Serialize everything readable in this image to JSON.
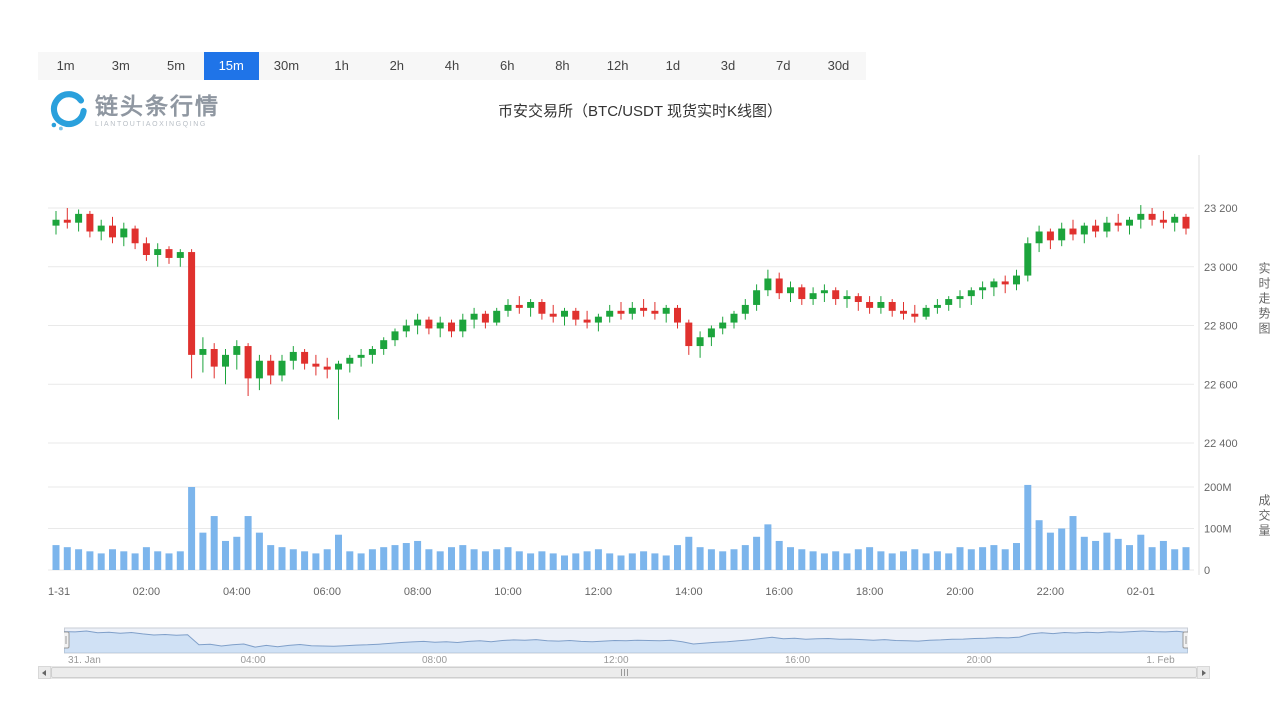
{
  "theme": {
    "accent": "#1f74e8"
  },
  "logo": {
    "name": "链头条行情",
    "subtitle": "LIANTOUTIAOXINGQING"
  },
  "intervals": {
    "options": [
      "1m",
      "3m",
      "5m",
      "15m",
      "30m",
      "1h",
      "2h",
      "4h",
      "6h",
      "8h",
      "12h",
      "1d",
      "3d",
      "7d",
      "30d"
    ],
    "selected": "15m"
  },
  "chart_data": {
    "type": "candlestick",
    "title": "币安交易所（BTC/USDT 现货实时K线图）",
    "symbol": "BTC/USDT",
    "interval": "15m",
    "start": "01-31 00:00",
    "interval_minutes": 15,
    "price_axis": {
      "title": "实时走势图",
      "labels": [
        "23 200",
        "23 000",
        "22 800",
        "22 600",
        "22 400"
      ],
      "values": [
        23200,
        23000,
        22800,
        22600,
        22400
      ]
    },
    "volume_axis": {
      "title": "成交量",
      "labels": [
        "200M",
        "100M",
        "0"
      ],
      "values": [
        200,
        100,
        0
      ],
      "unit": "M"
    },
    "x_axis": {
      "labels": [
        "01-31",
        "02:00",
        "04:00",
        "06:00",
        "08:00",
        "10:00",
        "12:00",
        "14:00",
        "16:00",
        "18:00",
        "20:00",
        "22:00",
        "02-01"
      ],
      "candles_per_label": 8
    },
    "colors": {
      "up": "#1ca43c",
      "down": "#e0312e",
      "volume": "#7cb5ec",
      "grid": "#e9e9e9",
      "axis_line": "#dddddd"
    },
    "candles_format": [
      "open",
      "high",
      "low",
      "close",
      "volume_millions"
    ],
    "candles": [
      [
        23140,
        23190,
        23110,
        23160,
        60
      ],
      [
        23160,
        23200,
        23130,
        23150,
        55
      ],
      [
        23150,
        23195,
        23120,
        23180,
        50
      ],
      [
        23180,
        23190,
        23100,
        23120,
        45
      ],
      [
        23120,
        23160,
        23090,
        23140,
        40
      ],
      [
        23140,
        23170,
        23080,
        23100,
        50
      ],
      [
        23100,
        23150,
        23070,
        23130,
        45
      ],
      [
        23130,
        23140,
        23060,
        23080,
        40
      ],
      [
        23080,
        23100,
        23020,
        23040,
        55
      ],
      [
        23040,
        23080,
        23000,
        23060,
        45
      ],
      [
        23060,
        23070,
        23010,
        23030,
        40
      ],
      [
        23030,
        23060,
        23000,
        23050,
        45
      ],
      [
        23050,
        23060,
        22620,
        22700,
        200
      ],
      [
        22700,
        22760,
        22640,
        22720,
        90
      ],
      [
        22720,
        22740,
        22620,
        22660,
        130
      ],
      [
        22660,
        22720,
        22600,
        22700,
        70
      ],
      [
        22700,
        22750,
        22650,
        22730,
        80
      ],
      [
        22730,
        22740,
        22560,
        22620,
        130
      ],
      [
        22620,
        22700,
        22580,
        22680,
        90
      ],
      [
        22680,
        22700,
        22600,
        22630,
        60
      ],
      [
        22630,
        22700,
        22610,
        22680,
        55
      ],
      [
        22680,
        22730,
        22650,
        22710,
        50
      ],
      [
        22710,
        22720,
        22650,
        22670,
        45
      ],
      [
        22670,
        22700,
        22630,
        22660,
        40
      ],
      [
        22660,
        22690,
        22620,
        22650,
        50
      ],
      [
        22650,
        22680,
        22480,
        22670,
        85
      ],
      [
        22670,
        22700,
        22640,
        22690,
        45
      ],
      [
        22690,
        22720,
        22660,
        22700,
        40
      ],
      [
        22700,
        22730,
        22670,
        22720,
        50
      ],
      [
        22720,
        22760,
        22700,
        22750,
        55
      ],
      [
        22750,
        22790,
        22730,
        22780,
        60
      ],
      [
        22780,
        22820,
        22760,
        22800,
        65
      ],
      [
        22800,
        22840,
        22770,
        22820,
        70
      ],
      [
        22820,
        22830,
        22770,
        22790,
        50
      ],
      [
        22790,
        22830,
        22760,
        22810,
        45
      ],
      [
        22810,
        22820,
        22760,
        22780,
        55
      ],
      [
        22780,
        22840,
        22760,
        22820,
        60
      ],
      [
        22820,
        22860,
        22790,
        22840,
        50
      ],
      [
        22840,
        22850,
        22790,
        22810,
        45
      ],
      [
        22810,
        22860,
        22800,
        22850,
        50
      ],
      [
        22850,
        22890,
        22830,
        22870,
        55
      ],
      [
        22870,
        22900,
        22840,
        22860,
        45
      ],
      [
        22860,
        22890,
        22830,
        22880,
        40
      ],
      [
        22880,
        22890,
        22820,
        22840,
        45
      ],
      [
        22840,
        22870,
        22810,
        22830,
        40
      ],
      [
        22830,
        22860,
        22800,
        22850,
        35
      ],
      [
        22850,
        22860,
        22800,
        22820,
        40
      ],
      [
        22820,
        22850,
        22790,
        22810,
        45
      ],
      [
        22810,
        22840,
        22780,
        22830,
        50
      ],
      [
        22830,
        22870,
        22810,
        22850,
        40
      ],
      [
        22850,
        22880,
        22820,
        22840,
        35
      ],
      [
        22840,
        22880,
        22820,
        22860,
        40
      ],
      [
        22860,
        22890,
        22830,
        22850,
        45
      ],
      [
        22850,
        22880,
        22820,
        22840,
        40
      ],
      [
        22840,
        22870,
        22810,
        22860,
        35
      ],
      [
        22860,
        22870,
        22790,
        22810,
        60
      ],
      [
        22810,
        22820,
        22700,
        22730,
        80
      ],
      [
        22730,
        22780,
        22690,
        22760,
        55
      ],
      [
        22760,
        22800,
        22730,
        22790,
        50
      ],
      [
        22790,
        22830,
        22770,
        22810,
        45
      ],
      [
        22810,
        22850,
        22790,
        22840,
        50
      ],
      [
        22840,
        22890,
        22820,
        22870,
        60
      ],
      [
        22870,
        22940,
        22850,
        22920,
        80
      ],
      [
        22920,
        22990,
        22900,
        22960,
        110
      ],
      [
        22960,
        22980,
        22890,
        22910,
        70
      ],
      [
        22910,
        22950,
        22880,
        22930,
        55
      ],
      [
        22930,
        22940,
        22870,
        22890,
        50
      ],
      [
        22890,
        22930,
        22870,
        22910,
        45
      ],
      [
        22910,
        22940,
        22880,
        22920,
        40
      ],
      [
        22920,
        22930,
        22870,
        22890,
        45
      ],
      [
        22890,
        22920,
        22860,
        22900,
        40
      ],
      [
        22900,
        22910,
        22850,
        22880,
        50
      ],
      [
        22880,
        22900,
        22840,
        22860,
        55
      ],
      [
        22860,
        22900,
        22840,
        22880,
        45
      ],
      [
        22880,
        22890,
        22830,
        22850,
        40
      ],
      [
        22850,
        22880,
        22820,
        22840,
        45
      ],
      [
        22840,
        22870,
        22810,
        22830,
        50
      ],
      [
        22830,
        22870,
        22820,
        22860,
        40
      ],
      [
        22860,
        22890,
        22840,
        22870,
        45
      ],
      [
        22870,
        22900,
        22850,
        22890,
        40
      ],
      [
        22890,
        22920,
        22860,
        22900,
        55
      ],
      [
        22900,
        22930,
        22870,
        22920,
        50
      ],
      [
        22920,
        22950,
        22890,
        22930,
        55
      ],
      [
        22930,
        22960,
        22900,
        22950,
        60
      ],
      [
        22950,
        22970,
        22910,
        22940,
        50
      ],
      [
        22940,
        22990,
        22920,
        22970,
        65
      ],
      [
        22970,
        23100,
        22950,
        23080,
        205
      ],
      [
        23080,
        23140,
        23050,
        23120,
        120
      ],
      [
        23120,
        23130,
        23060,
        23090,
        90
      ],
      [
        23090,
        23150,
        23070,
        23130,
        100
      ],
      [
        23130,
        23160,
        23090,
        23110,
        130
      ],
      [
        23110,
        23150,
        23080,
        23140,
        80
      ],
      [
        23140,
        23160,
        23100,
        23120,
        70
      ],
      [
        23120,
        23170,
        23100,
        23150,
        90
      ],
      [
        23150,
        23180,
        23120,
        23140,
        75
      ],
      [
        23140,
        23170,
        23110,
        23160,
        60
      ],
      [
        23160,
        23210,
        23130,
        23180,
        85
      ],
      [
        23180,
        23200,
        23140,
        23160,
        55
      ],
      [
        23160,
        23190,
        23130,
        23150,
        70
      ],
      [
        23150,
        23180,
        23120,
        23170,
        50
      ],
      [
        23170,
        23180,
        23110,
        23130,
        55
      ]
    ]
  },
  "navigator": {
    "labels": [
      "31. Jan",
      "04:00",
      "08:00",
      "12:00",
      "16:00",
      "20:00",
      "1. Feb"
    ]
  }
}
